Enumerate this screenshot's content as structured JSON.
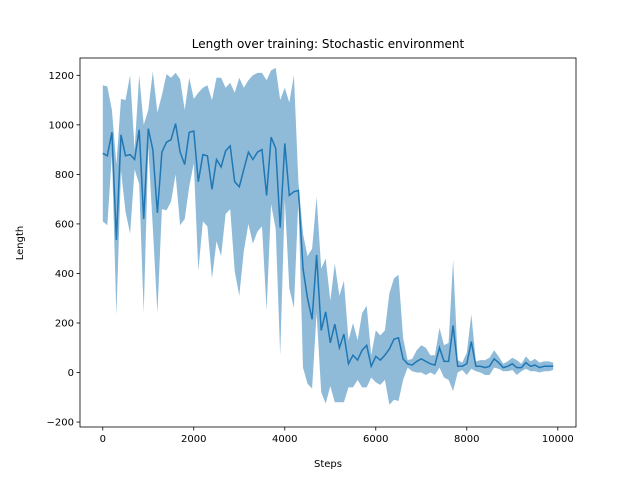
{
  "chart_data": {
    "type": "line",
    "title": "Length over training: Stochastic environment",
    "xlabel": "Steps",
    "ylabel": "Length",
    "xlim": [
      -500,
      10400
    ],
    "ylim": [
      -220,
      1270
    ],
    "xticks": [
      0,
      2000,
      4000,
      6000,
      8000,
      10000
    ],
    "yticks": [
      -200,
      0,
      200,
      400,
      600,
      800,
      1000,
      1200
    ],
    "grid": false,
    "colors": {
      "line": "#1f77b4",
      "band": "#1f77b4"
    },
    "series": [
      {
        "x": [
          0,
          100,
          200,
          300,
          400,
          500,
          600,
          700,
          800,
          900,
          1000,
          1100,
          1200,
          1300,
          1400,
          1500,
          1600,
          1700,
          1800,
          1900,
          2000,
          2100,
          2200,
          2300,
          2400,
          2500,
          2600,
          2700,
          2800,
          2900,
          3000,
          3100,
          3200,
          3300,
          3400,
          3500,
          3600,
          3700,
          3800,
          3900,
          4000,
          4100,
          4200,
          4300,
          4400,
          4500,
          4600,
          4700,
          4800,
          4900,
          5000,
          5100,
          5200,
          5300,
          5400,
          5500,
          5600,
          5700,
          5800,
          5900,
          6000,
          6100,
          6200,
          6300,
          6400,
          6500,
          6600,
          6700,
          6800,
          6900,
          7000,
          7100,
          7200,
          7300,
          7400,
          7500,
          7600,
          7700,
          7800,
          7900,
          8000,
          8100,
          8200,
          8300,
          8400,
          8500,
          8600,
          8700,
          8800,
          8900,
          9000,
          9100,
          9200,
          9300,
          9400,
          9500,
          9600,
          9700,
          9800,
          9900
        ],
        "mean": [
          885,
          875,
          970,
          535,
          960,
          875,
          880,
          860,
          980,
          620,
          985,
          900,
          645,
          890,
          930,
          940,
          1005,
          890,
          840,
          970,
          975,
          770,
          880,
          875,
          740,
          860,
          830,
          895,
          915,
          770,
          750,
          820,
          890,
          860,
          890,
          900,
          715,
          950,
          905,
          585,
          925,
          715,
          730,
          735,
          420,
          300,
          215,
          475,
          170,
          245,
          120,
          195,
          100,
          155,
          35,
          70,
          50,
          90,
          110,
          25,
          65,
          50,
          70,
          95,
          135,
          140,
          55,
          35,
          30,
          45,
          55,
          45,
          35,
          30,
          100,
          45,
          45,
          190,
          25,
          25,
          35,
          125,
          25,
          25,
          20,
          25,
          55,
          40,
          20,
          25,
          35,
          20,
          20,
          40,
          25,
          30,
          20,
          25,
          25,
          25
        ],
        "upper": [
          1160,
          1155,
          1060,
          840,
          1105,
          1100,
          1200,
          900,
          1200,
          1000,
          1060,
          1215,
          1050,
          1120,
          1205,
          1190,
          1210,
          1185,
          1060,
          1190,
          1105,
          1130,
          1150,
          1160,
          1100,
          1190,
          1190,
          1150,
          1170,
          1130,
          1190,
          1150,
          1180,
          1200,
          1210,
          1210,
          1180,
          1220,
          1230,
          1100,
          1150,
          1090,
          1200,
          770,
          560,
          470,
          500,
          710,
          420,
          460,
          290,
          440,
          310,
          370,
          130,
          200,
          130,
          240,
          270,
          70,
          170,
          150,
          170,
          320,
          380,
          395,
          140,
          50,
          55,
          90,
          110,
          100,
          70,
          70,
          180,
          110,
          120,
          455,
          50,
          40,
          80,
          235,
          45,
          50,
          50,
          60,
          90,
          65,
          35,
          45,
          60,
          50,
          35,
          65,
          45,
          55,
          40,
          45,
          45,
          40
        ],
        "lower": [
          610,
          595,
          880,
          230,
          815,
          650,
          560,
          820,
          760,
          240,
          910,
          585,
          240,
          660,
          655,
          690,
          800,
          595,
          620,
          750,
          845,
          410,
          610,
          590,
          380,
          530,
          470,
          640,
          660,
          410,
          310,
          490,
          600,
          520,
          570,
          590,
          250,
          680,
          580,
          70,
          700,
          340,
          260,
          700,
          20,
          -45,
          -65,
          240,
          -80,
          -125,
          -55,
          -120,
          -120,
          -120,
          -60,
          -60,
          -30,
          -60,
          -60,
          -20,
          -40,
          -50,
          -30,
          -130,
          -110,
          -115,
          -30,
          20,
          5,
          0,
          0,
          -10,
          0,
          -10,
          20,
          -20,
          -30,
          -75,
          0,
          10,
          -10,
          15,
          5,
          0,
          -10,
          -10,
          20,
          15,
          5,
          5,
          10,
          -10,
          5,
          15,
          5,
          5,
          0,
          5,
          5,
          10
        ]
      }
    ]
  }
}
